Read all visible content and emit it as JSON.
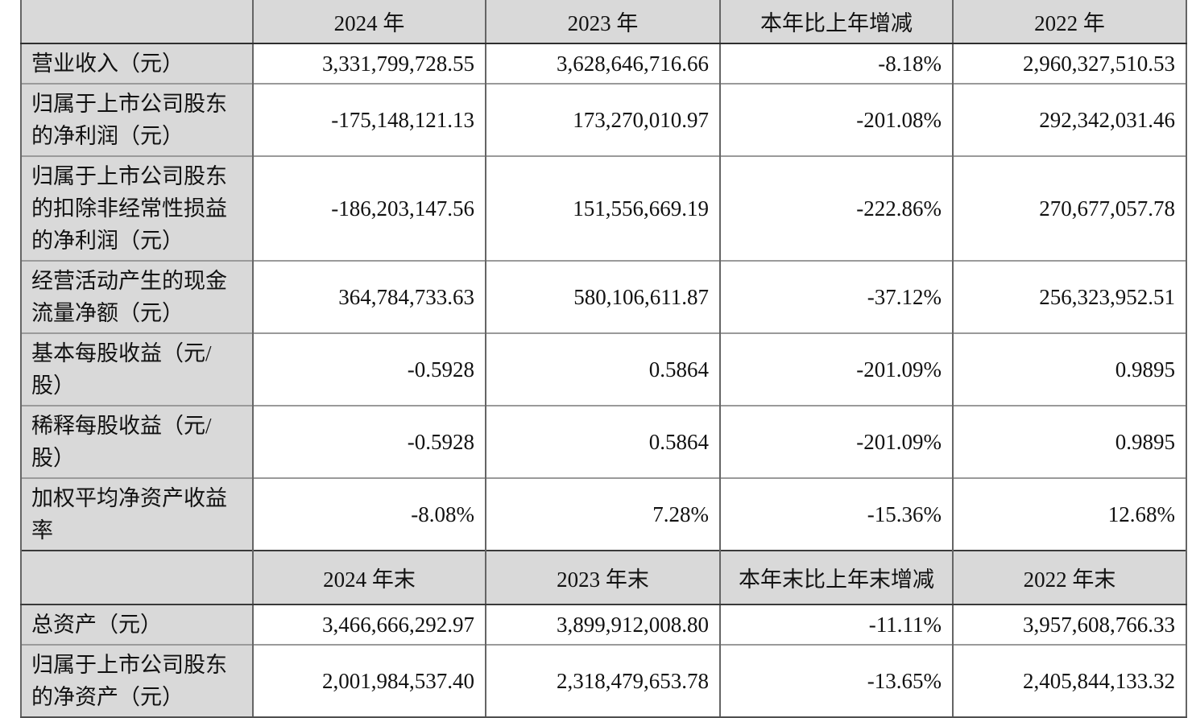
{
  "document": {
    "type": "annual-report-financial-summary-table",
    "colors": {
      "header_bg": "#d9d9d9",
      "label_bg": "#d9d9d9",
      "cell_bg": "#ffffff",
      "border_vertical": "#656565",
      "border_horizontal": "#9a9a9a",
      "border_header_dark": "#2f2f2f",
      "text": "#111111"
    }
  },
  "table": {
    "sections": [
      {
        "header": {
          "label": "",
          "cols": [
            "2024 年",
            "2023 年",
            "本年比上年增减",
            "2022 年"
          ]
        },
        "rows": [
          {
            "label": "营业收入（元）",
            "values": [
              "3,331,799,728.55",
              "3,628,646,716.66",
              "-8.18%",
              "2,960,327,510.53"
            ]
          },
          {
            "label": "归属于上市公司股东\n的净利润（元）",
            "values": [
              "-175,148,121.13",
              "173,270,010.97",
              "-201.08%",
              "292,342,031.46"
            ]
          },
          {
            "label": "归属于上市公司股东\n的扣除非经常性损益\n的净利润（元）",
            "values": [
              "-186,203,147.56",
              "151,556,669.19",
              "-222.86%",
              "270,677,057.78"
            ]
          },
          {
            "label": "经营活动产生的现金\n流量净额（元）",
            "values": [
              "364,784,733.63",
              "580,106,611.87",
              "-37.12%",
              "256,323,952.51"
            ]
          },
          {
            "label": "基本每股收益（元/\n股）",
            "values": [
              "-0.5928",
              "0.5864",
              "-201.09%",
              "0.9895"
            ]
          },
          {
            "label": "稀释每股收益（元/\n股）",
            "values": [
              "-0.5928",
              "0.5864",
              "-201.09%",
              "0.9895"
            ]
          },
          {
            "label": "加权平均净资产收益\n率",
            "values": [
              "-8.08%",
              "7.28%",
              "-15.36%",
              "12.68%"
            ]
          }
        ]
      },
      {
        "header": {
          "label": "",
          "cols": [
            "2024 年末",
            "2023 年末",
            "本年末比上年末增减",
            "2022 年末"
          ]
        },
        "rows": [
          {
            "label": "总资产（元）",
            "values": [
              "3,466,666,292.97",
              "3,899,912,008.80",
              "-11.11%",
              "3,957,608,766.33"
            ]
          },
          {
            "label": "归属于上市公司股东\n的净资产（元）",
            "values": [
              "2,001,984,537.40",
              "2,318,479,653.78",
              "-13.65%",
              "2,405,844,133.32"
            ]
          }
        ]
      }
    ]
  }
}
